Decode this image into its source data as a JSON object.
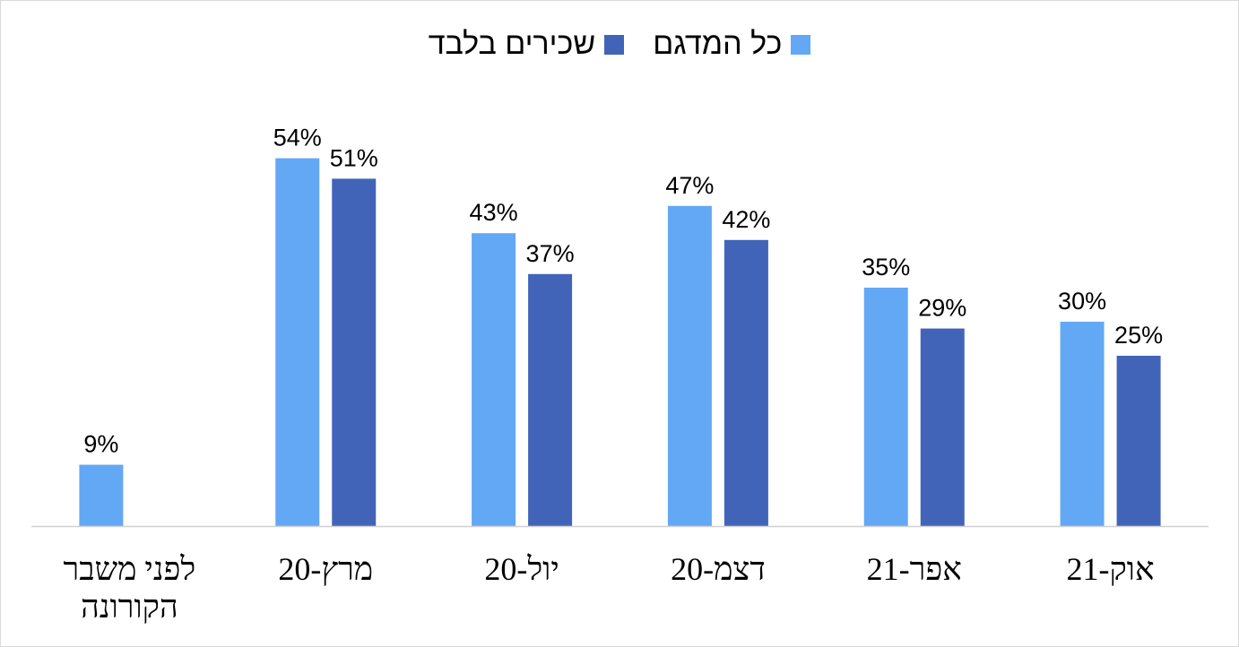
{
  "chart_data": {
    "type": "bar",
    "title": "",
    "xlabel": "",
    "ylabel": "",
    "ylim": [
      0,
      60
    ],
    "grid": false,
    "legend_position": "top",
    "direction": "rtl",
    "categories": [
      "לפני משבר הקורונה",
      "מרץ-20",
      "יול-20",
      "דצמ-20",
      "אפר-21",
      "אוק-21"
    ],
    "category_lines": [
      [
        "לפני משבר",
        "הקורונה"
      ],
      [
        "מרץ-20"
      ],
      [
        "יול-20"
      ],
      [
        "דצמ-20"
      ],
      [
        "אפר-21"
      ],
      [
        "אוק-21"
      ]
    ],
    "series": [
      {
        "name": "כל המדגם",
        "color": "#63a8f5",
        "values": [
          9,
          54,
          43,
          47,
          35,
          30
        ],
        "labels": [
          "9%",
          "54%",
          "43%",
          "47%",
          "35%",
          "30%"
        ]
      },
      {
        "name": "שכירים בלבד",
        "color": "#4264b8",
        "values": [
          null,
          51,
          37,
          42,
          29,
          25
        ],
        "labels": [
          "",
          "51%",
          "37%",
          "42%",
          "29%",
          "25%"
        ]
      }
    ]
  }
}
